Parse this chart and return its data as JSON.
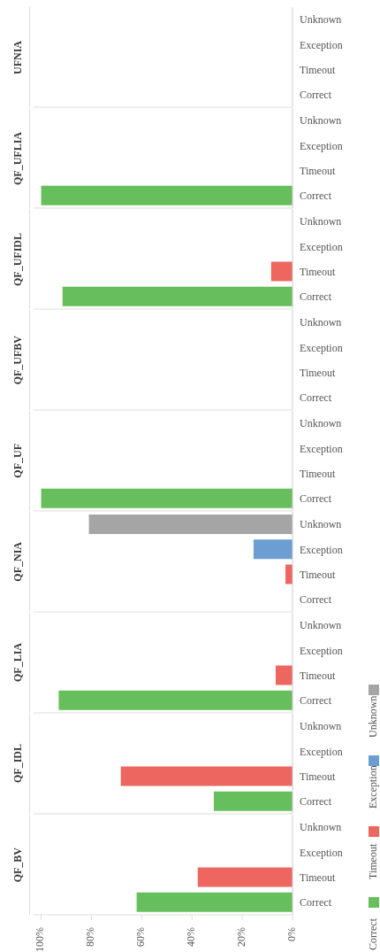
{
  "chart_data": [
    {
      "type": "bar",
      "orientation": "horizontal",
      "stacked": true,
      "title": "UFNIA",
      "categories": [
        "Unknown",
        "Exception",
        "Timeout",
        "Correct"
      ],
      "series": [
        {
          "color": "#a5a5a5",
          "values": [
            null,
            null,
            null,
            null
          ]
        },
        {
          "color": "#6d9ed1",
          "values": [
            null,
            null,
            null,
            null
          ]
        },
        {
          "color": "#ee6660",
          "values": [
            null,
            null,
            null,
            null
          ]
        },
        {
          "color": "#66bf5c",
          "values": [
            null,
            null,
            null,
            null
          ]
        }
      ],
      "xlim": [
        1.03,
        0
      ],
      "tick_labels": "y"
    },
    {
      "type": "bar",
      "orientation": "horizontal",
      "stacked": true,
      "title": "QF_UFLIA",
      "categories": [
        "Unknown",
        "Exception",
        "Timeout",
        "Correct"
      ],
      "series": [
        {
          "color": "#a5a5a5",
          "values": [
            null,
            null,
            null,
            null
          ]
        },
        {
          "color": "#6d9ed1",
          "values": [
            null,
            null,
            null,
            null
          ]
        },
        {
          "color": "#ee6660",
          "values": [
            null,
            null,
            null,
            null
          ]
        },
        {
          "color": "#66bf5c",
          "values": [
            null,
            null,
            null,
            1.0
          ]
        }
      ],
      "xlim": [
        1.03,
        0
      ],
      "tick_labels": "y"
    },
    {
      "type": "bar",
      "orientation": "horizontal",
      "stacked": true,
      "title": "QF_UFIDL",
      "categories": [
        "Unknown",
        "Exception",
        "Timeout",
        "Correct"
      ],
      "series": [
        {
          "color": "#a5a5a5",
          "values": [
            null,
            null,
            null,
            null
          ]
        },
        {
          "color": "#6d9ed1",
          "values": [
            null,
            null,
            null,
            null
          ]
        },
        {
          "color": "#ee6660",
          "values": [
            null,
            null,
            0.085,
            null
          ]
        },
        {
          "color": "#66bf5c",
          "values": [
            null,
            null,
            null,
            0.915
          ]
        }
      ],
      "xlim": [
        1.03,
        0
      ],
      "tick_labels": "y"
    },
    {
      "type": "bar",
      "orientation": "horizontal",
      "stacked": true,
      "title": "QF_UFBV",
      "categories": [
        "Unknown",
        "Exception",
        "Timeout",
        "Correct"
      ],
      "series": [
        {
          "color": "#a5a5a5",
          "values": [
            null,
            null,
            null,
            null
          ]
        },
        {
          "color": "#6d9ed1",
          "values": [
            null,
            null,
            null,
            null
          ]
        },
        {
          "color": "#ee6660",
          "values": [
            null,
            null,
            null,
            null
          ]
        },
        {
          "color": "#66bf5c",
          "values": [
            null,
            null,
            null,
            null
          ]
        }
      ],
      "xlim": [
        1.03,
        0
      ],
      "tick_labels": "y"
    },
    {
      "type": "bar",
      "orientation": "horizontal",
      "stacked": true,
      "title": "QF_UF",
      "categories": [
        "Unknown",
        "Exception",
        "Timeout",
        "Correct"
      ],
      "series": [
        {
          "color": "#a5a5a5",
          "values": [
            null,
            null,
            null,
            null
          ]
        },
        {
          "color": "#6d9ed1",
          "values": [
            null,
            null,
            null,
            null
          ]
        },
        {
          "color": "#ee6660",
          "values": [
            null,
            null,
            null,
            null
          ]
        },
        {
          "color": "#66bf5c",
          "values": [
            null,
            null,
            null,
            1.0
          ]
        }
      ],
      "xlim": [
        1.03,
        0
      ],
      "tick_labels": "y"
    },
    {
      "type": "bar",
      "orientation": "horizontal",
      "stacked": true,
      "title": "QF_NIA",
      "categories": [
        "Unknown",
        "Exception",
        "Timeout",
        "Correct"
      ],
      "series": [
        {
          "color": "#a5a5a5",
          "values": [
            0.81,
            null,
            null,
            null
          ]
        },
        {
          "color": "#6d9ed1",
          "values": [
            null,
            0.155,
            null,
            null
          ]
        },
        {
          "color": "#ee6660",
          "values": [
            null,
            null,
            0.028,
            null
          ]
        },
        {
          "color": "#66bf5c",
          "values": [
            null,
            null,
            null,
            null
          ]
        }
      ],
      "xlim": [
        1.03,
        0
      ],
      "tick_labels": "y"
    },
    {
      "type": "bar",
      "orientation": "horizontal",
      "stacked": true,
      "title": "QF_LIA",
      "categories": [
        "Unknown",
        "Exception",
        "Timeout",
        "Correct"
      ],
      "series": [
        {
          "color": "#a5a5a5",
          "values": [
            null,
            null,
            null,
            null
          ]
        },
        {
          "color": "#6d9ed1",
          "values": [
            null,
            null,
            null,
            null
          ]
        },
        {
          "color": "#ee6660",
          "values": [
            null,
            null,
            0.067,
            null
          ]
        },
        {
          "color": "#66bf5c",
          "values": [
            null,
            null,
            null,
            0.93
          ]
        }
      ],
      "xlim": [
        1.03,
        0
      ],
      "tick_labels": "y"
    },
    {
      "type": "bar",
      "orientation": "horizontal",
      "stacked": true,
      "title": "QF_IDL",
      "categories": [
        "Unknown",
        "Exception",
        "Timeout",
        "Correct"
      ],
      "series": [
        {
          "color": "#a5a5a5",
          "values": [
            null,
            null,
            null,
            null
          ]
        },
        {
          "color": "#6d9ed1",
          "values": [
            null,
            null,
            null,
            null
          ]
        },
        {
          "color": "#ee6660",
          "values": [
            null,
            null,
            0.683,
            null
          ]
        },
        {
          "color": "#66bf5c",
          "values": [
            null,
            null,
            null,
            0.313
          ]
        }
      ],
      "xlim": [
        1.03,
        0
      ],
      "tick_labels": "y"
    },
    {
      "type": "bar",
      "orientation": "horizontal",
      "stacked": true,
      "title": "QF_BV",
      "categories": [
        "Unknown",
        "Exception",
        "Timeout",
        "Correct"
      ],
      "series": [
        {
          "name": "Unknown",
          "color": "#a5a5a5",
          "values": [
            null,
            null,
            null,
            null
          ]
        },
        {
          "name": "Exception",
          "color": "#6d9ed1",
          "values": [
            null,
            null,
            null,
            null
          ]
        },
        {
          "name": "Timeout",
          "color": "#ee6660",
          "values": [
            null,
            null,
            0.377,
            null
          ]
        },
        {
          "name": "Correct",
          "color": "#66bf5c",
          "values": [
            null,
            null,
            null,
            0.62
          ]
        }
      ],
      "xlim": [
        1.03,
        0
      ],
      "xticks": [
        {
          "value": 1,
          "label": "100%"
        },
        {
          "value": 0.8,
          "label": "80%"
        },
        {
          "value": 0.6,
          "label": "60%"
        },
        {
          "value": 0.4,
          "label": "40%"
        },
        {
          "value": 0.2,
          "label": "20%"
        },
        {
          "value": 0,
          "label": "0%"
        }
      ],
      "legend": "right"
    }
  ]
}
